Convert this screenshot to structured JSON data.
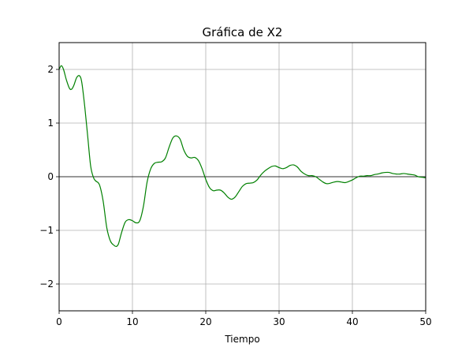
{
  "chart_data": {
    "type": "line",
    "title": "Gráfica de X2",
    "xlabel": "Tiempo",
    "ylabel": "",
    "xlim": [
      0,
      50
    ],
    "ylim": [
      -2.5,
      2.5
    ],
    "grid": true,
    "zero_line": true,
    "x_ticks": [
      0,
      10,
      20,
      30,
      40,
      50
    ],
    "x_tick_labels": [
      "0",
      "10",
      "20",
      "30",
      "40",
      "50"
    ],
    "y_ticks": [
      2,
      1,
      0,
      -1,
      -2
    ],
    "y_tick_labels": [
      "2",
      "1",
      "0",
      "−1",
      "−2"
    ],
    "series": [
      {
        "color": "#008000",
        "x": [
          0,
          0.3,
          0.6,
          1.0,
          1.4,
          1.7,
          2.0,
          2.4,
          2.8,
          3.1,
          3.5,
          3.9,
          4.3,
          4.7,
          5.0,
          5.5,
          6.0,
          6.5,
          7.0,
          7.5,
          7.8,
          8.1,
          8.5,
          9.0,
          9.5,
          10.0,
          10.5,
          11.0,
          11.5,
          12.0,
          12.5,
          13.0,
          13.5,
          14.0,
          14.5,
          15.0,
          15.5,
          16.0,
          16.5,
          17.0,
          17.5,
          18.0,
          18.5,
          19.0,
          19.5,
          20.0,
          20.5,
          21.0,
          21.5,
          22.0,
          22.5,
          23.0,
          23.5,
          24.0,
          24.5,
          25.0,
          25.5,
          26.0,
          26.5,
          27.0,
          27.5,
          28.0,
          28.5,
          29.0,
          29.5,
          30.0,
          30.5,
          31.0,
          31.5,
          32.0,
          32.5,
          33.0,
          33.5,
          34.0,
          34.5,
          35.0,
          35.5,
          36.0,
          36.5,
          37.0,
          37.5,
          38.0,
          38.5,
          39.0,
          39.5,
          40.0,
          40.5,
          41.0,
          41.5,
          42.0,
          42.5,
          43.0,
          43.5,
          44.0,
          44.5,
          45.0,
          45.5,
          46.0,
          46.5,
          47.0,
          47.5,
          48.0,
          48.5,
          49.0,
          49.5,
          50.0
        ],
        "y": [
          2.0,
          2.07,
          2.0,
          1.8,
          1.65,
          1.63,
          1.7,
          1.85,
          1.88,
          1.75,
          1.3,
          0.75,
          0.2,
          -0.02,
          -0.08,
          -0.15,
          -0.45,
          -0.95,
          -1.2,
          -1.28,
          -1.3,
          -1.25,
          -1.05,
          -0.85,
          -0.8,
          -0.82,
          -0.86,
          -0.82,
          -0.55,
          -0.1,
          0.15,
          0.25,
          0.27,
          0.28,
          0.35,
          0.55,
          0.72,
          0.76,
          0.7,
          0.5,
          0.38,
          0.35,
          0.36,
          0.3,
          0.15,
          -0.05,
          -0.2,
          -0.26,
          -0.25,
          -0.25,
          -0.3,
          -0.38,
          -0.42,
          -0.38,
          -0.28,
          -0.18,
          -0.13,
          -0.12,
          -0.11,
          -0.06,
          0.03,
          0.1,
          0.15,
          0.19,
          0.2,
          0.17,
          0.15,
          0.17,
          0.21,
          0.22,
          0.18,
          0.1,
          0.05,
          0.02,
          0.02,
          0.0,
          -0.05,
          -0.1,
          -0.13,
          -0.12,
          -0.1,
          -0.09,
          -0.1,
          -0.11,
          -0.09,
          -0.06,
          -0.02,
          0.01,
          0.01,
          0.02,
          0.02,
          0.04,
          0.05,
          0.07,
          0.08,
          0.08,
          0.06,
          0.05,
          0.05,
          0.06,
          0.05,
          0.04,
          0.03,
          0.0,
          -0.01,
          -0.02
        ]
      }
    ]
  }
}
